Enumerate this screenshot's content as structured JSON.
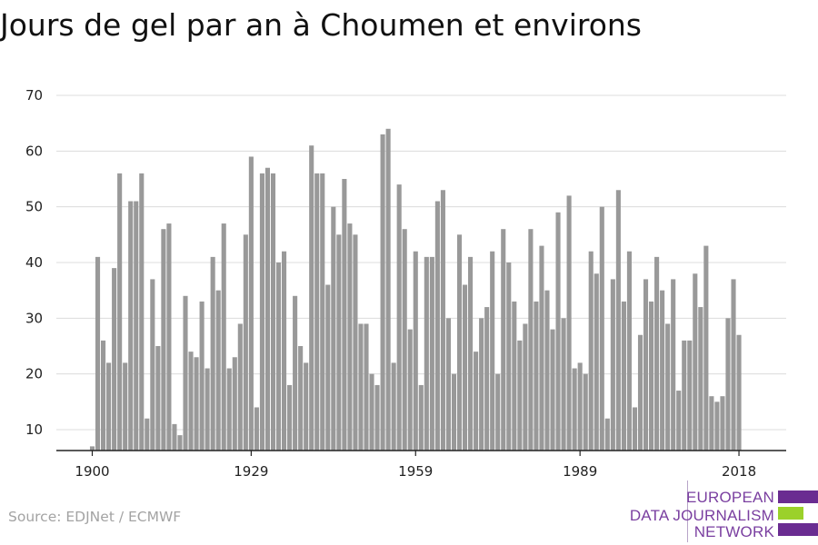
{
  "title": "Jours de gel par an à Choumen et environs",
  "source": "Source: EDJNet / ECMWF",
  "logo": {
    "lines": [
      "EUROPEAN",
      "DATA JOURNALISM",
      "NETWORK"
    ],
    "colors": [
      "#6a2c91",
      "#9bd12a",
      "#6a2c91"
    ]
  },
  "chart_data": {
    "type": "bar",
    "title": "Jours de gel par an à Choumen et environs",
    "xlabel": "",
    "ylabel": "",
    "x_start": 1900,
    "x_end": 2018,
    "x_ticks": [
      1900,
      1929,
      1959,
      1989,
      2018
    ],
    "y_ticks": [
      10,
      20,
      30,
      40,
      50,
      60,
      70
    ],
    "ylim": [
      6,
      70
    ],
    "grid": "horizontal",
    "bar_color": "#999999",
    "values": [
      7,
      41,
      26,
      22,
      39,
      56,
      22,
      51,
      51,
      56,
      12,
      37,
      25,
      46,
      47,
      11,
      9,
      34,
      24,
      23,
      33,
      21,
      41,
      35,
      47,
      21,
      23,
      29,
      45,
      59,
      14,
      56,
      57,
      56,
      40,
      42,
      18,
      34,
      25,
      22,
      61,
      56,
      56,
      36,
      50,
      45,
      55,
      47,
      45,
      29,
      29,
      20,
      18,
      63,
      64,
      22,
      54,
      46,
      28,
      42,
      18,
      41,
      41,
      51,
      53,
      30,
      20,
      45,
      36,
      41,
      24,
      30,
      32,
      42,
      20,
      46,
      40,
      33,
      26,
      29,
      46,
      33,
      43,
      35,
      28,
      49,
      30,
      52,
      21,
      22,
      20,
      42,
      38,
      50,
      12,
      37,
      53,
      33,
      42,
      14,
      27,
      37,
      33,
      41,
      35,
      29,
      37,
      17,
      26,
      26,
      38,
      32,
      43,
      16,
      15,
      16,
      30,
      37,
      27
    ]
  }
}
